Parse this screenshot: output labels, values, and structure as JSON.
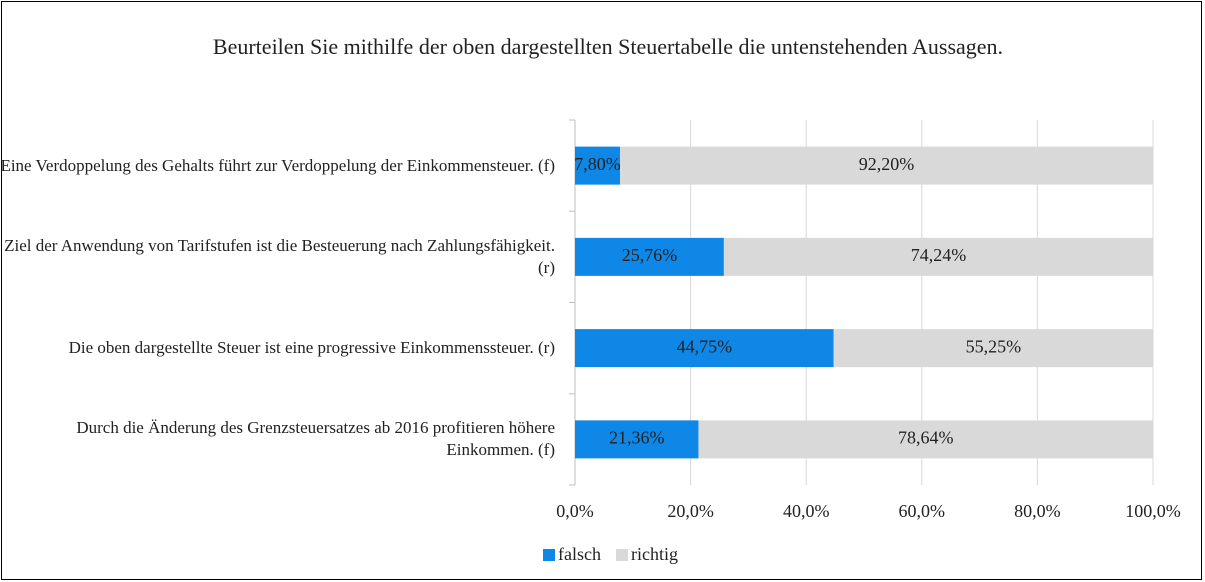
{
  "chart_data": {
    "type": "stacked_barh",
    "title": "Beurteilen Sie mithilfe  der oben dargestellten Steuertabelle die untenstehenden Aussagen.",
    "categories": [
      "Eine Verdoppelung des Gehalts führt zur Verdoppelung der Einkommensteuer. (f)",
      "Ziel der Anwendung von Tarifstufen ist die Besteuerung nach Zahlungsfähigkeit. (r)",
      "Die oben dargestellte Steuer ist eine progressive Einkommenssteuer. (r)",
      "Durch die Änderung des Grenzsteuersatzes ab 2016 profitieren höhere Einkommen. (f)"
    ],
    "series": [
      {
        "name": "falsch",
        "color": "#0f87e6",
        "values": [
          7.8,
          25.76,
          44.75,
          21.36
        ],
        "value_labels": [
          "7,80%",
          "25,76%",
          "44,75%",
          "21,36%"
        ]
      },
      {
        "name": "richtig",
        "color": "#d9d9d9",
        "values": [
          92.2,
          74.24,
          55.25,
          78.64
        ],
        "value_labels": [
          "92,20%",
          "74,24%",
          "55,25%",
          "78,64%"
        ]
      }
    ],
    "xlim": [
      0,
      100
    ],
    "xticks": [
      {
        "value": 0,
        "label": "0,0%"
      },
      {
        "value": 20,
        "label": "20,0%"
      },
      {
        "value": 40,
        "label": "40,0%"
      },
      {
        "value": 60,
        "label": "60,0%"
      },
      {
        "value": 80,
        "label": "80,0%"
      },
      {
        "value": 100,
        "label": "100,0%"
      }
    ],
    "grid": true,
    "legend": "bottom"
  }
}
